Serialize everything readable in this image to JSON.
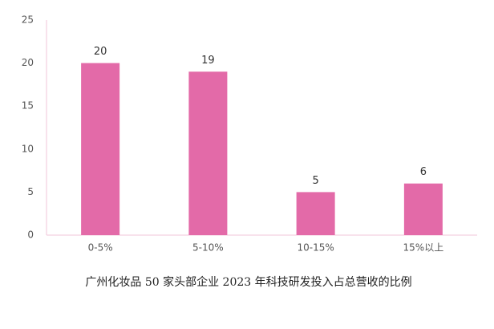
{
  "chart_data": {
    "type": "bar",
    "title": "广州化妆品 50 家头部企业 2023 年科技研发投入占总营收的比例",
    "categories": [
      "0-5%",
      "5-10%",
      "10-15%",
      "15%以上"
    ],
    "values": [
      20,
      19,
      5,
      6
    ],
    "color": "#e36aa8",
    "ylim": [
      0,
      25
    ],
    "yticks": [
      0,
      5,
      10,
      15,
      20,
      25
    ],
    "grid": false
  }
}
